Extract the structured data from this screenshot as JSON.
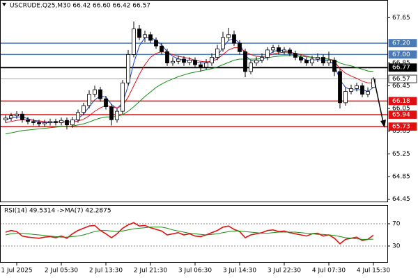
{
  "chart_data": [
    {
      "type": "candlestick",
      "title": "USCRUDE.Q25,M30 66.42 66.60 66.42 66.57",
      "categories": [
        null,
        null,
        "1 Jul 2025",
        null,
        null,
        null,
        null,
        null,
        null,
        null,
        "2 Jul 05:30",
        null,
        null,
        null,
        null,
        null,
        null,
        null,
        "2 Jul 13:30",
        null,
        null,
        null,
        null,
        null,
        null,
        null,
        "2 Jul 21:30",
        null,
        null,
        null,
        null,
        null,
        null,
        null,
        "3 Jul 06:30",
        null,
        null,
        null,
        null,
        null,
        null,
        null,
        "3 Jul 14:30",
        null,
        null,
        null,
        null,
        null,
        null,
        null,
        "3 Jul 22:30",
        null,
        null,
        null,
        null,
        null,
        null,
        null,
        "4 Jul 07:30",
        null,
        null,
        null,
        null,
        null,
        null,
        null,
        "4 Jul 15:30"
      ],
      "ohlc": [
        [
          65.85,
          65.93,
          65.8,
          65.88
        ],
        [
          65.88,
          65.97,
          65.83,
          65.92
        ],
        [
          65.92,
          66.0,
          65.87,
          65.95
        ],
        [
          65.95,
          66.0,
          65.8,
          65.85
        ],
        [
          65.85,
          65.9,
          65.77,
          65.82
        ],
        [
          65.82,
          65.87,
          65.75,
          65.8
        ],
        [
          65.8,
          65.85,
          65.73,
          65.78
        ],
        [
          65.78,
          65.85,
          65.73,
          65.8
        ],
        [
          65.8,
          65.87,
          65.75,
          65.82
        ],
        [
          65.82,
          65.87,
          65.75,
          65.8
        ],
        [
          65.8,
          65.89,
          65.75,
          65.84
        ],
        [
          65.84,
          65.89,
          65.68,
          65.76
        ],
        [
          65.76,
          65.9,
          65.71,
          65.85
        ],
        [
          65.85,
          66.03,
          65.8,
          65.98
        ],
        [
          65.98,
          66.15,
          65.93,
          66.1
        ],
        [
          66.1,
          66.37,
          66.05,
          66.3
        ],
        [
          66.3,
          66.45,
          66.25,
          66.38
        ],
        [
          66.38,
          66.43,
          66.17,
          66.22
        ],
        [
          66.22,
          66.27,
          66.03,
          66.08
        ],
        [
          66.08,
          66.13,
          65.75,
          65.85
        ],
        [
          65.85,
          66.05,
          65.8,
          66.0
        ],
        [
          66.0,
          66.55,
          65.95,
          66.5
        ],
        [
          66.5,
          67.08,
          66.45,
          67.0
        ],
        [
          67.0,
          67.58,
          66.95,
          67.45
        ],
        [
          67.45,
          67.52,
          67.25,
          67.3
        ],
        [
          67.3,
          67.42,
          67.22,
          67.35
        ],
        [
          67.35,
          67.4,
          67.2,
          67.25
        ],
        [
          67.25,
          67.3,
          67.1,
          67.15
        ],
        [
          67.15,
          67.2,
          67.0,
          67.05
        ],
        [
          67.05,
          67.1,
          66.8,
          66.85
        ],
        [
          66.85,
          66.95,
          66.8,
          66.88
        ],
        [
          66.88,
          66.98,
          66.83,
          66.92
        ],
        [
          66.92,
          66.97,
          66.8,
          66.86
        ],
        [
          66.86,
          66.95,
          66.81,
          66.9
        ],
        [
          66.9,
          66.95,
          66.76,
          66.82
        ],
        [
          66.82,
          66.87,
          66.7,
          66.78
        ],
        [
          66.78,
          66.92,
          66.73,
          66.85
        ],
        [
          66.85,
          67.02,
          66.8,
          66.95
        ],
        [
          66.95,
          67.17,
          66.9,
          67.1
        ],
        [
          67.1,
          67.4,
          67.05,
          67.3
        ],
        [
          67.3,
          67.47,
          67.25,
          67.35
        ],
        [
          67.35,
          67.42,
          67.15,
          67.2
        ],
        [
          67.2,
          67.25,
          67.0,
          67.05
        ],
        [
          67.05,
          67.1,
          66.6,
          66.7
        ],
        [
          66.7,
          66.9,
          66.65,
          66.85
        ],
        [
          66.85,
          66.96,
          66.8,
          66.9
        ],
        [
          66.9,
          67.02,
          66.85,
          66.95
        ],
        [
          66.95,
          67.13,
          66.9,
          67.08
        ],
        [
          67.08,
          67.17,
          67.03,
          67.12
        ],
        [
          67.12,
          67.17,
          67.0,
          67.05
        ],
        [
          67.05,
          67.13,
          67.0,
          67.08
        ],
        [
          67.08,
          67.12,
          66.97,
          67.02
        ],
        [
          67.02,
          67.07,
          66.9,
          66.95
        ],
        [
          66.95,
          67.0,
          66.85,
          66.9
        ],
        [
          66.9,
          66.95,
          66.8,
          66.85
        ],
        [
          66.85,
          66.98,
          66.8,
          66.92
        ],
        [
          66.92,
          67.02,
          66.87,
          66.95
        ],
        [
          66.95,
          67.0,
          66.8,
          66.85
        ],
        [
          66.85,
          67.05,
          66.8,
          66.9
        ],
        [
          66.9,
          66.95,
          66.62,
          66.7
        ],
        [
          66.7,
          66.75,
          66.05,
          66.15
        ],
        [
          66.15,
          66.42,
          66.1,
          66.35
        ],
        [
          66.35,
          66.47,
          66.3,
          66.4
        ],
        [
          66.4,
          66.5,
          66.35,
          66.45
        ],
        [
          66.45,
          66.5,
          66.25,
          66.3
        ],
        [
          66.3,
          66.42,
          66.25,
          66.35
        ],
        [
          66.42,
          66.6,
          66.42,
          66.57
        ]
      ],
      "lines": [
        {
          "color": "#1f3fbf",
          "values": [
            65.85,
            65.88,
            65.9,
            65.9,
            65.87,
            65.84,
            65.81,
            65.8,
            65.8,
            65.81,
            65.82,
            65.81,
            65.82,
            65.87,
            65.95,
            66.08,
            66.2,
            66.27,
            66.25,
            66.12,
            66.05,
            66.15,
            66.45,
            66.85,
            67.15,
            67.3,
            67.3,
            67.25,
            67.17,
            67.05,
            66.97,
            66.92,
            66.9,
            66.9,
            66.88,
            66.85,
            66.85,
            66.88,
            66.98,
            67.12,
            67.25,
            67.28,
            67.2,
            66.98,
            66.9,
            66.87,
            66.9,
            66.98,
            67.05,
            67.08,
            67.07,
            67.05,
            67.0,
            66.95,
            66.9,
            66.9,
            66.91,
            66.9,
            66.9,
            66.82,
            66.55,
            66.42,
            66.38,
            66.38,
            66.38,
            66.35,
            66.42
          ]
        },
        {
          "color": "#e01020",
          "values": [
            65.8,
            65.82,
            65.84,
            65.85,
            65.85,
            65.84,
            65.83,
            65.82,
            65.81,
            65.81,
            65.81,
            65.81,
            65.81,
            65.83,
            65.86,
            65.92,
            66.0,
            66.06,
            66.1,
            66.08,
            66.06,
            66.1,
            66.25,
            66.45,
            66.65,
            66.82,
            66.95,
            67.02,
            67.05,
            67.03,
            67.0,
            66.97,
            66.95,
            66.93,
            66.9,
            66.88,
            66.87,
            66.88,
            66.92,
            67.0,
            67.08,
            67.12,
            67.12,
            67.05,
            67.0,
            66.97,
            66.96,
            66.98,
            67.01,
            67.03,
            67.04,
            67.04,
            67.02,
            67.0,
            66.97,
            66.95,
            66.94,
            66.93,
            66.92,
            66.88,
            66.75,
            66.67,
            66.62,
            66.58,
            66.53,
            66.5,
            66.5
          ]
        },
        {
          "color": "#1a8a1a",
          "values": [
            65.6,
            65.62,
            65.64,
            65.66,
            65.67,
            65.68,
            65.69,
            65.7,
            65.71,
            65.72,
            65.73,
            65.73,
            65.74,
            65.76,
            65.78,
            65.81,
            65.85,
            65.88,
            65.9,
            65.9,
            65.91,
            65.94,
            66.0,
            66.08,
            66.17,
            66.26,
            66.34,
            66.42,
            66.48,
            66.53,
            66.57,
            66.61,
            66.64,
            66.67,
            66.69,
            66.71,
            66.73,
            66.75,
            66.78,
            66.82,
            66.86,
            66.9,
            66.92,
            66.92,
            66.92,
            66.92,
            66.93,
            66.94,
            66.96,
            66.97,
            66.98,
            66.98,
            66.98,
            66.97,
            66.96,
            66.95,
            66.94,
            66.93,
            66.92,
            66.9,
            66.85,
            66.82,
            66.8,
            66.77,
            66.74,
            66.71,
            66.7
          ]
        }
      ],
      "levels": [
        {
          "value": 67.2,
          "label": "67.20",
          "color": "#4a7ab5"
        },
        {
          "value": 67.0,
          "label": "67.00",
          "color": "#4a7ab5"
        },
        {
          "value": 66.77,
          "label": "66.77",
          "color": "#000000"
        },
        {
          "value": 66.57,
          "label": "66.57",
          "color": "#9a9a9a"
        },
        {
          "value": 66.18,
          "label": "66.18",
          "color": "#e01010"
        },
        {
          "value": 65.94,
          "label": "65.94",
          "color": "#e01010"
        },
        {
          "value": 65.73,
          "label": "65.73",
          "color": "#e01010"
        }
      ],
      "ylim": [
        64.41,
        67.96
      ],
      "yticks": [
        67.65,
        66.85,
        66.45,
        66.05,
        65.65,
        65.25,
        64.85,
        64.45
      ]
    },
    {
      "type": "line",
      "title": "RSI(14) 49.5314 ->MA(7) 42.2875",
      "series": [
        {
          "color": "#e01010",
          "values": [
            55,
            58,
            56,
            48,
            46,
            45,
            44,
            46,
            47,
            45,
            48,
            44,
            52,
            58,
            62,
            66,
            67,
            58,
            52,
            45,
            52,
            62,
            68,
            72,
            66,
            67,
            63,
            60,
            57,
            50,
            52,
            54,
            50,
            52,
            48,
            47,
            50,
            54,
            58,
            64,
            66,
            60,
            56,
            45,
            50,
            52,
            54,
            58,
            59,
            56,
            57,
            54,
            52,
            50,
            48,
            52,
            53,
            48,
            50,
            44,
            34,
            42,
            44,
            46,
            40,
            42,
            49.5314
          ]
        },
        {
          "color": "#1a8a1a",
          "values": [
            50,
            52,
            53,
            53,
            52,
            51,
            50,
            49,
            48,
            47,
            46,
            46,
            47,
            48,
            50,
            53,
            56,
            58,
            58,
            57,
            56,
            57,
            59,
            61,
            62,
            63,
            64,
            64,
            64,
            62,
            59,
            57,
            55,
            53,
            52,
            51,
            50,
            51,
            52,
            54,
            56,
            57,
            57,
            56,
            55,
            54,
            53,
            53,
            54,
            55,
            55,
            55,
            55,
            54,
            53,
            52,
            51,
            51,
            50,
            49,
            47,
            45,
            44,
            43,
            42,
            42,
            42.2875
          ]
        }
      ],
      "ylim": [
        0,
        102.5
      ],
      "yticks": [
        70,
        30
      ]
    }
  ]
}
